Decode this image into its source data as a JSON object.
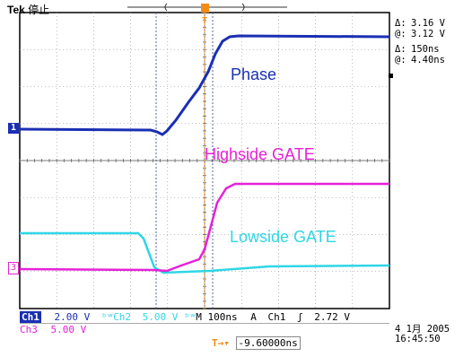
{
  "header": {
    "brand": "Tek",
    "status": "停止"
  },
  "cursor_readout": {
    "v_delta_symbol": "Δ:",
    "v_delta": "3.16 V",
    "v_at_symbol": "@:",
    "v_at": "3.12 V",
    "t_delta_symbol": "Δ:",
    "t_delta": "150ns",
    "t_at_symbol": "@:",
    "t_at": "4.40ns"
  },
  "labels": {
    "phase": "Phase",
    "highside": "Highside GATE",
    "lowside": "Lowside GATE"
  },
  "markers": {
    "ch1": "1",
    "ch3": "3",
    "trigger": "T"
  },
  "settings": {
    "ch1_name": "Ch1",
    "ch1_scale": "2.00 V",
    "ch2_name": "Ch2",
    "ch2_scale": "5.00 V",
    "timebase": "M 100ns",
    "trigger_mode": "A",
    "trigger_source": "Ch1",
    "trigger_level": "2.72 V",
    "ch3_name": "Ch3",
    "ch3_scale": "5.00 V",
    "trigger_position": "-9.60000ns"
  },
  "datetime": {
    "date": "4 1月 2005",
    "time": "16:45:50"
  },
  "colors": {
    "ch1": "#1a2fb3",
    "ch2": "#2fd6e6",
    "ch3": "#e621d6",
    "grid": "#888888",
    "trigger": "#f28c18"
  }
}
